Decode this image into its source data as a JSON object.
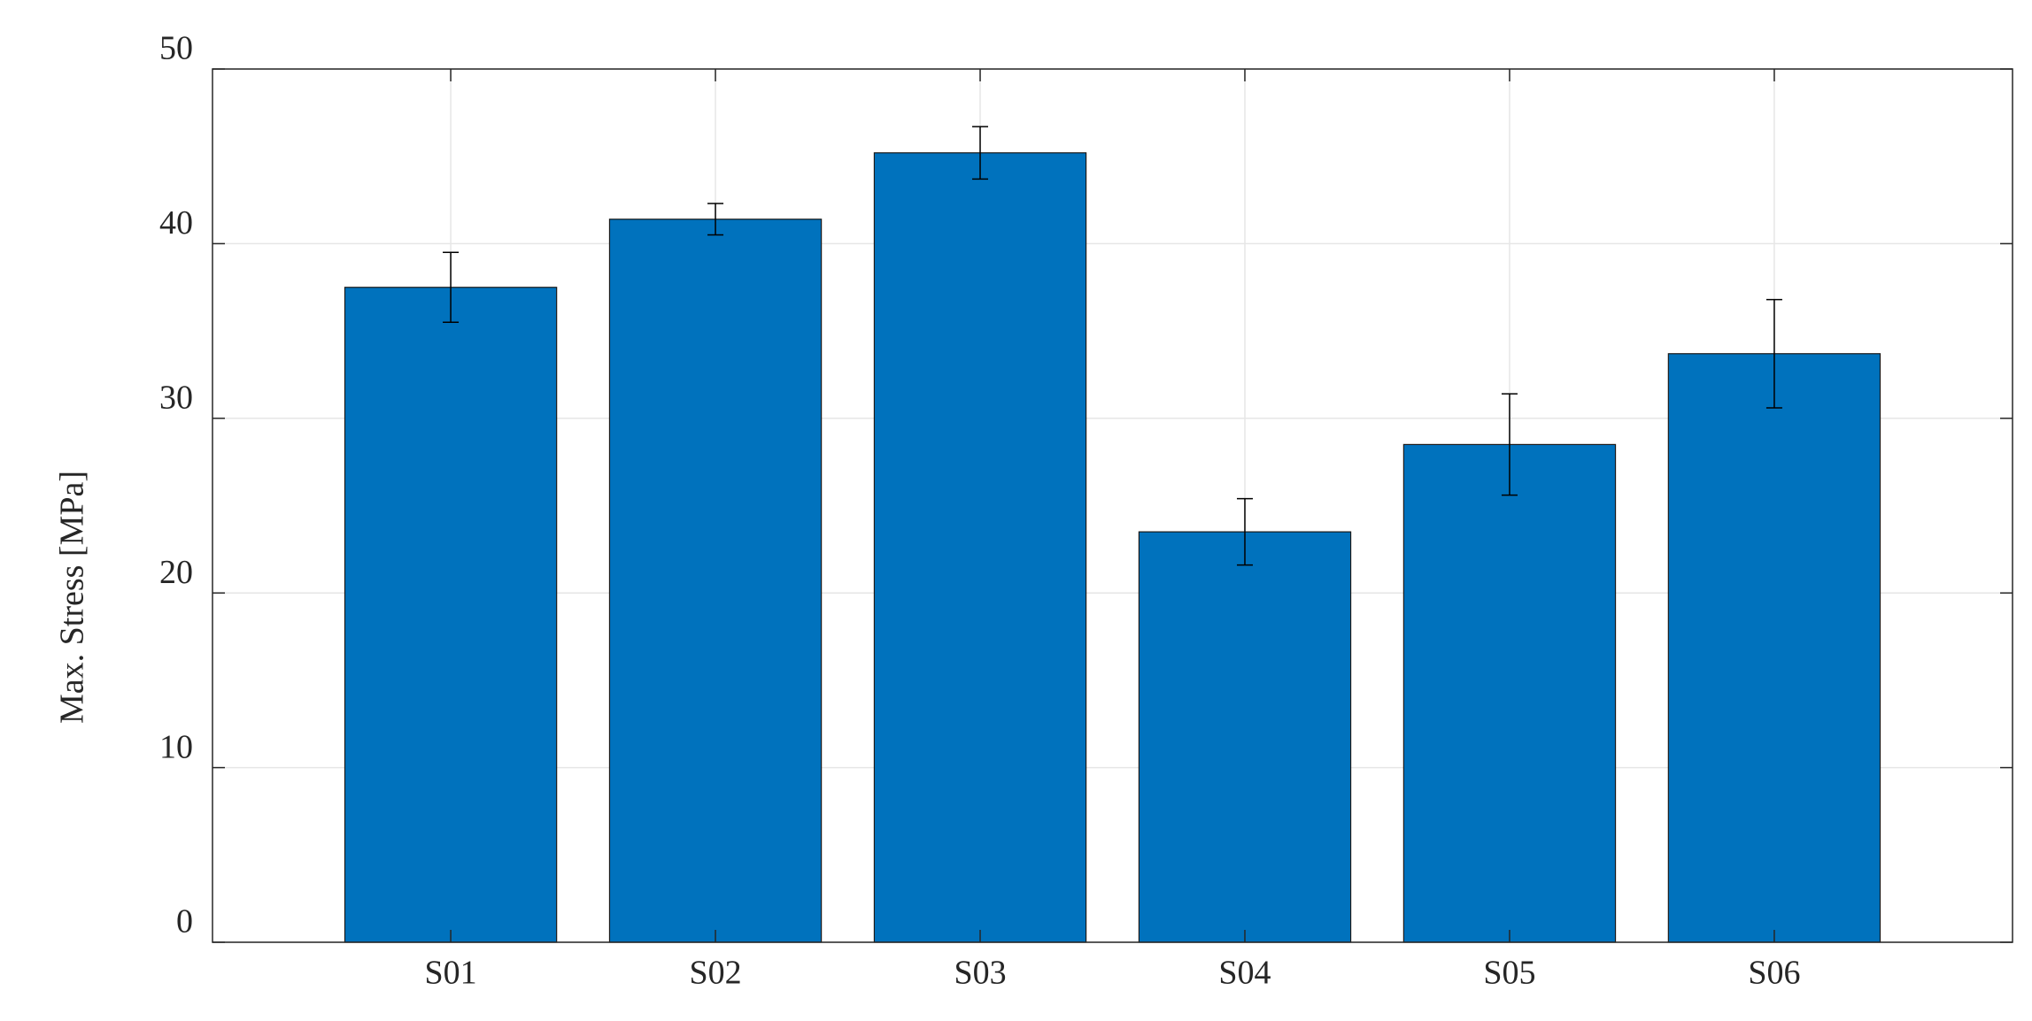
{
  "chart_data": {
    "type": "bar",
    "y_label": "Max. Stress [MPa]",
    "categories": [
      "S01",
      "S02",
      "S03",
      "S04",
      "S05",
      "S06"
    ],
    "values": [
      37.5,
      41.4,
      45.2,
      23.5,
      28.5,
      33.7
    ],
    "errors": [
      2.0,
      0.9,
      1.5,
      1.9,
      2.9,
      3.1
    ],
    "color": "#0072bd",
    "ylim": [
      0,
      50
    ],
    "yticks": [
      0,
      10,
      20,
      30,
      40,
      50
    ],
    "grid": true
  }
}
